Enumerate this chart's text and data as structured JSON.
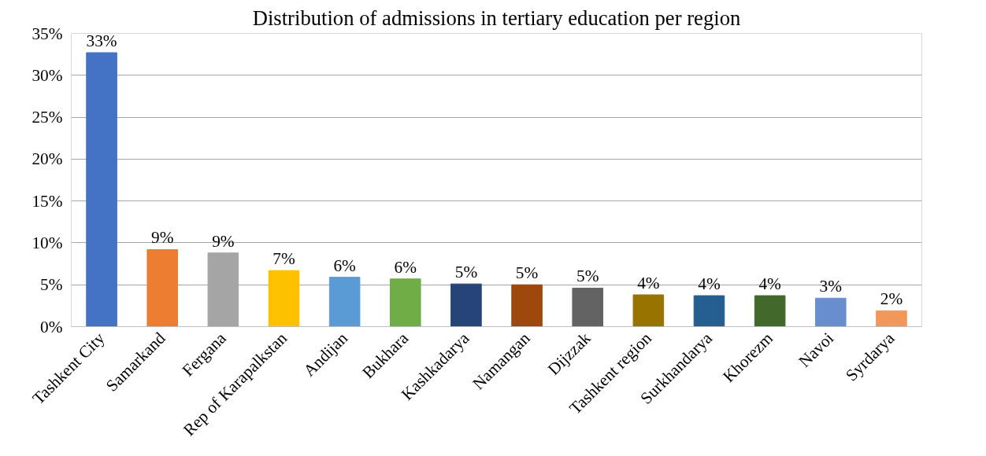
{
  "chart_data": {
    "type": "bar",
    "title": "Distribution of admissions in tertiary education per region",
    "categories": [
      "Tashkent City",
      "Samarkand",
      "Fergana",
      "Rep of Karapalkstan",
      "Andijan",
      "Bukhara",
      "Kashkadarya",
      "Namangan",
      "Dijzzak",
      "Tashkent region",
      "Surkhandarya",
      "Khorezm",
      "Navoi",
      "Syrdarya"
    ],
    "values": [
      32.7,
      9.2,
      8.8,
      6.7,
      5.9,
      5.7,
      5.1,
      5.0,
      4.6,
      3.8,
      3.7,
      3.7,
      3.4,
      1.9
    ],
    "value_labels": [
      "33%",
      "9%",
      "9%",
      "7%",
      "6%",
      "6%",
      "5%",
      "5%",
      "5%",
      "4%",
      "4%",
      "4%",
      "3%",
      "2%"
    ],
    "colors": [
      "#4472c4",
      "#ed7d31",
      "#a5a5a5",
      "#ffc000",
      "#5b9bd5",
      "#70ad47",
      "#264478",
      "#9e480e",
      "#636363",
      "#997300",
      "#255e91",
      "#43682b",
      "#698ed0",
      "#f1975a"
    ],
    "ylim": [
      0,
      35
    ],
    "yticks": [
      {
        "value": 0,
        "label": "0%"
      },
      {
        "value": 5,
        "label": "5%"
      },
      {
        "value": 10,
        "label": "10%"
      },
      {
        "value": 15,
        "label": "15%"
      },
      {
        "value": 20,
        "label": "20%"
      },
      {
        "value": 25,
        "label": "25%"
      },
      {
        "value": 30,
        "label": "30%"
      },
      {
        "value": 35,
        "label": "35%"
      }
    ],
    "grid": "y"
  }
}
